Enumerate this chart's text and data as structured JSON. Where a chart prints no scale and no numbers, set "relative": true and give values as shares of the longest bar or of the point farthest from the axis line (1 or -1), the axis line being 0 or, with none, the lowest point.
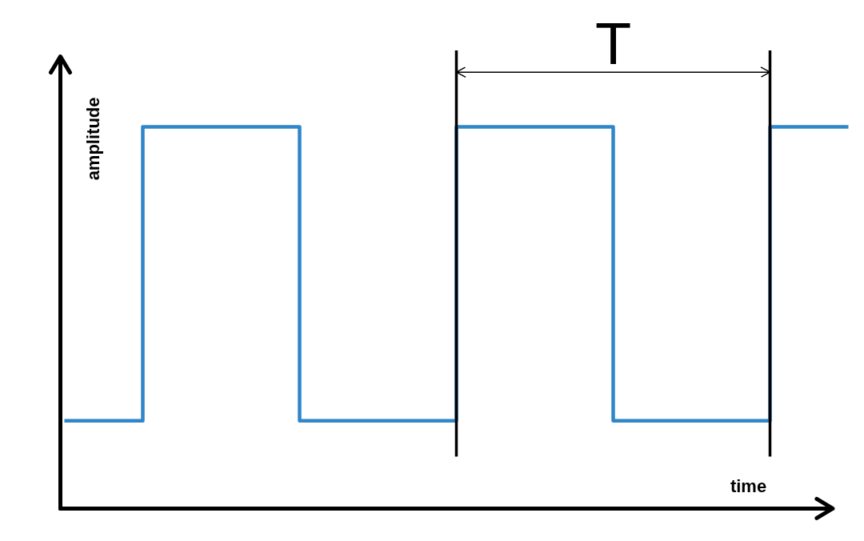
{
  "chart_data": {
    "type": "step",
    "relative": true,
    "categories": [
      null,
      null,
      null,
      null,
      null,
      null,
      null,
      null,
      null,
      null,
      null
    ],
    "values": [
      0.23,
      1,
      1,
      0.23,
      0.23,
      1,
      1,
      0.23,
      0.23,
      1,
      1
    ],
    "color": "#2f86c9",
    "xlabel": "time",
    "ylabel": "amplitude",
    "annotations": [
      "T"
    ]
  }
}
